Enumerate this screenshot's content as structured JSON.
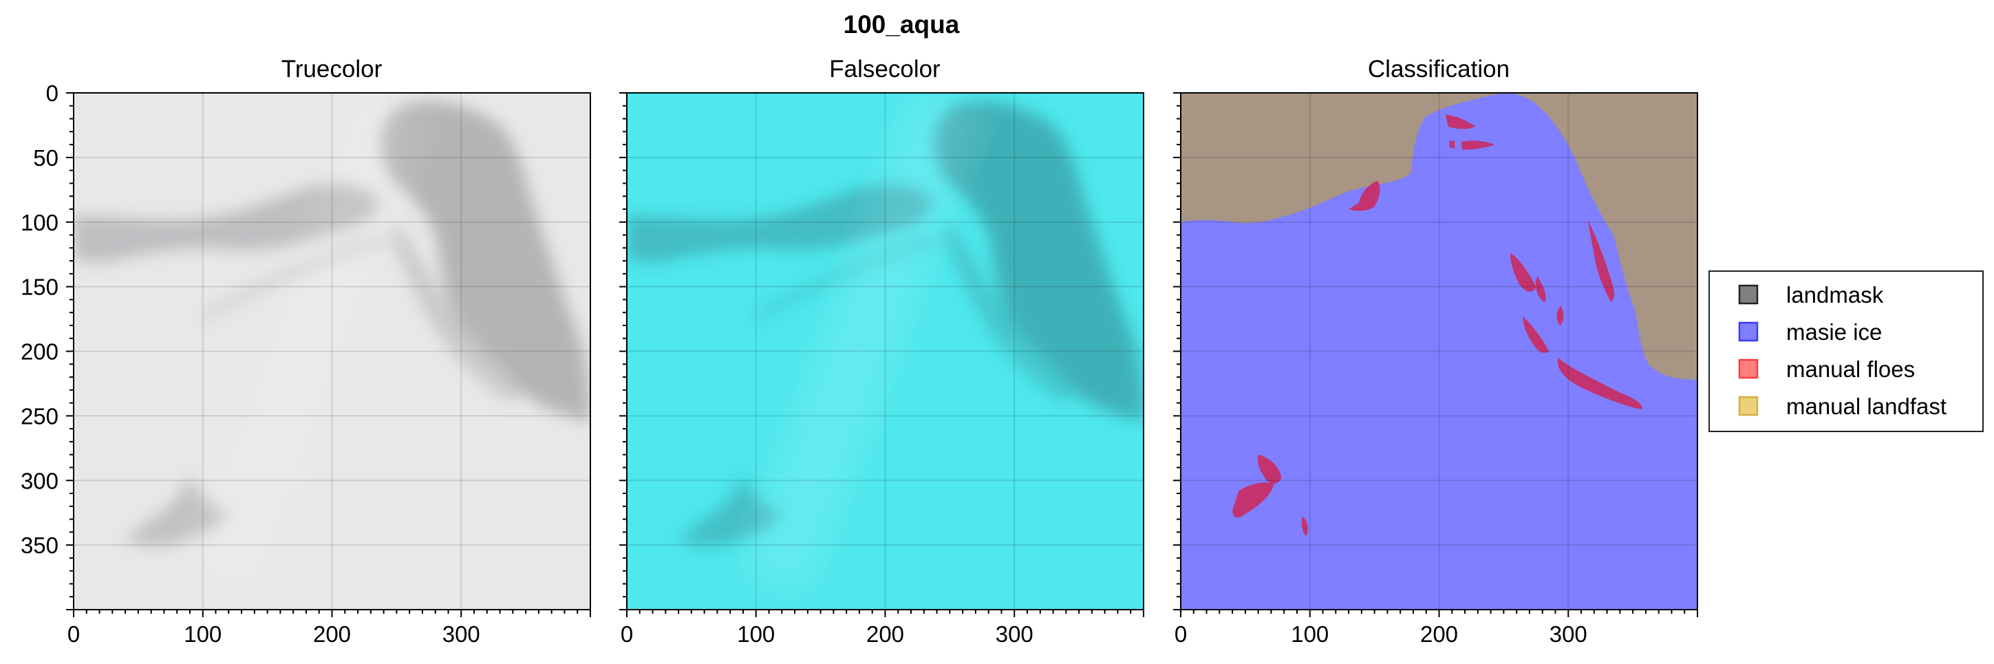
{
  "figure": {
    "title": "100_aqua"
  },
  "chart_data": [
    {
      "type": "image",
      "title": "Truecolor",
      "xlabel": "",
      "ylabel": "",
      "xlim": [
        0,
        400
      ],
      "ylim": [
        400,
        0
      ],
      "x_ticks": [
        0,
        100,
        200,
        300
      ],
      "y_ticks": [
        0,
        50,
        100,
        150,
        200,
        250,
        300,
        350
      ],
      "grid": true,
      "base_color": "#e8e8ea",
      "feature_color": "#a3a3a6"
    },
    {
      "type": "image",
      "title": "Falsecolor",
      "xlabel": "",
      "ylabel": "",
      "xlim": [
        0,
        400
      ],
      "ylim": [
        400,
        0
      ],
      "x_ticks": [
        0,
        100,
        200,
        300
      ],
      "y_ticks": [
        0,
        50,
        100,
        150,
        200,
        250,
        300,
        350
      ],
      "grid": true,
      "base_color": "#4ee8ee",
      "feature_color": "#3a9fa6"
    },
    {
      "type": "image",
      "title": "Classification",
      "xlabel": "",
      "ylabel": "",
      "xlim": [
        0,
        400
      ],
      "ylim": [
        400,
        0
      ],
      "x_ticks": [
        0,
        100,
        200,
        300
      ],
      "y_ticks": [
        0,
        50,
        100,
        150,
        200,
        250,
        300,
        350
      ],
      "grid": true,
      "classes": {
        "landmask_overlay_color": "#a99584",
        "masie_ice_color": "#7f7fff",
        "manual_floes_color": "#c2336f"
      }
    }
  ],
  "legend": {
    "placement": "right",
    "entries": [
      {
        "label": "landmask",
        "color": "#808080",
        "edge": "#222222"
      },
      {
        "label": "masie ice",
        "color": "#7f7fff",
        "edge": "#3a3aff"
      },
      {
        "label": "manual floes",
        "color": "#ff7f7f",
        "edge": "#ff3a3a"
      },
      {
        "label": "manual landfast",
        "color": "#ecd07a",
        "edge": "#d4b040"
      }
    ]
  }
}
